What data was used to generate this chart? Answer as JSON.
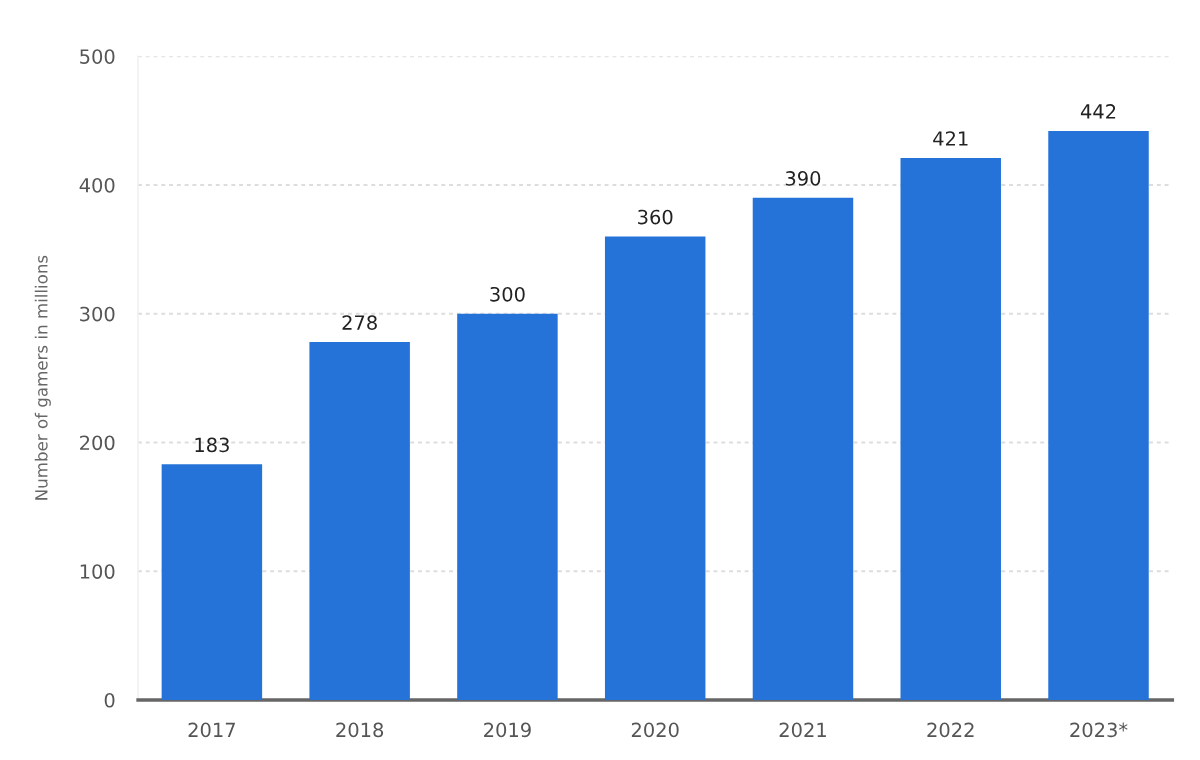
{
  "chart_data": {
    "type": "bar",
    "ylabel": "Number of gamers in millions",
    "categories": [
      "2017",
      "2018",
      "2019",
      "2020",
      "2021",
      "2022",
      "2023*"
    ],
    "values": [
      183,
      278,
      300,
      360,
      390,
      421,
      442
    ],
    "color": "#2573d9",
    "ylim": [
      0,
      500
    ],
    "yticks": [
      0,
      100,
      200,
      300,
      400,
      500
    ],
    "grid": "y",
    "data_labels": true
  }
}
